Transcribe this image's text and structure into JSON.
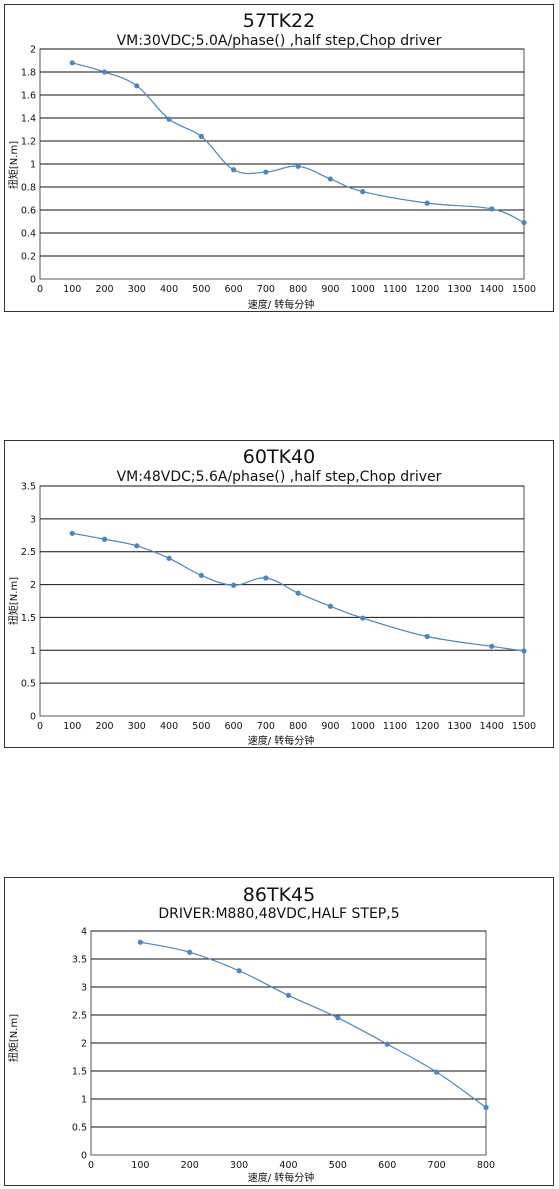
{
  "chart_data": [
    {
      "type": "line",
      "title": "57TK22",
      "subtitle": "VM:30VDC;5.0A/phase() ,half step,Chop driver",
      "xlabel": "速度/ 转每分钟",
      "ylabel": "扭矩[N.m]",
      "xlim": [
        0,
        1500
      ],
      "ylim": [
        0,
        2
      ],
      "xticks": [
        0,
        100,
        200,
        300,
        400,
        500,
        600,
        700,
        800,
        900,
        1000,
        1100,
        1200,
        1300,
        1400,
        1500
      ],
      "yticks": [
        0,
        0.2,
        0.4,
        0.6,
        0.8,
        1,
        1.2,
        1.4,
        1.6,
        1.8,
        2
      ],
      "xtick_labels": [
        "0",
        "100",
        "200",
        "300",
        "400",
        "500",
        "600",
        "700",
        "800",
        "900",
        "1000",
        "1100",
        "1200",
        "1300",
        "1400",
        "1500"
      ],
      "ytick_labels": [
        "0",
        "0.2",
        "0.4",
        "0.6",
        "0.8",
        "1",
        "1.2",
        "1.4",
        "1.6",
        "1.8",
        "2"
      ],
      "grid": true,
      "color": "#4a86c5",
      "x": [
        100,
        200,
        300,
        400,
        500,
        600,
        700,
        800,
        900,
        1000,
        1200,
        1400,
        1500
      ],
      "y": [
        1.88,
        1.8,
        1.68,
        1.39,
        1.24,
        0.95,
        0.93,
        0.98,
        0.87,
        0.76,
        0.66,
        0.61,
        0.49
      ]
    },
    {
      "type": "line",
      "title": "60TK40",
      "subtitle": "VM:48VDC;5.6A/phase() ,half step,Chop driver",
      "xlabel": "速度/ 转每分钟",
      "ylabel": "扭矩[N.m]",
      "xlim": [
        0,
        1500
      ],
      "ylim": [
        0,
        3.5
      ],
      "xticks": [
        0,
        100,
        200,
        300,
        400,
        500,
        600,
        700,
        800,
        900,
        1000,
        1100,
        1200,
        1300,
        1400,
        1500
      ],
      "yticks": [
        0,
        0.5,
        1,
        1.5,
        2,
        2.5,
        3,
        3.5
      ],
      "xtick_labels": [
        "0",
        "100",
        "200",
        "300",
        "400",
        "500",
        "600",
        "700",
        "800",
        "900",
        "1000",
        "1100",
        "1200",
        "1300",
        "1400",
        "1500"
      ],
      "ytick_labels": [
        "0",
        "0.5",
        "1",
        "1.5",
        "2",
        "2.5",
        "3",
        "3.5"
      ],
      "grid": true,
      "color": "#4a86c5",
      "x": [
        100,
        200,
        300,
        400,
        500,
        600,
        700,
        800,
        900,
        1000,
        1200,
        1400,
        1500
      ],
      "y": [
        2.78,
        2.69,
        2.59,
        2.4,
        2.14,
        1.99,
        2.1,
        1.87,
        1.67,
        1.49,
        1.21,
        1.06,
        0.99
      ]
    },
    {
      "type": "line",
      "title": "86TK45",
      "subtitle": "DRIVER:M880,48VDC,HALF STEP,5",
      "xlabel": "速度/ 转每分钟",
      "ylabel": "扭矩[N.m]",
      "xlim": [
        0,
        800
      ],
      "ylim": [
        0,
        4
      ],
      "xticks": [
        0,
        100,
        200,
        300,
        400,
        500,
        600,
        700,
        800
      ],
      "yticks": [
        0,
        0.5,
        1,
        1.5,
        2,
        2.5,
        3,
        3.5,
        4
      ],
      "xtick_labels": [
        "0",
        "100",
        "200",
        "300",
        "400",
        "500",
        "600",
        "700",
        "800"
      ],
      "ytick_labels": [
        "0",
        "0.5",
        "1",
        "1.5",
        "2",
        "2.5",
        "3",
        "3.5",
        "4"
      ],
      "grid": true,
      "color": "#4a86c5",
      "x": [
        100,
        200,
        300,
        400,
        500,
        600,
        700,
        800
      ],
      "y": [
        3.8,
        3.62,
        3.29,
        2.85,
        2.45,
        1.98,
        1.48,
        0.85
      ]
    }
  ]
}
